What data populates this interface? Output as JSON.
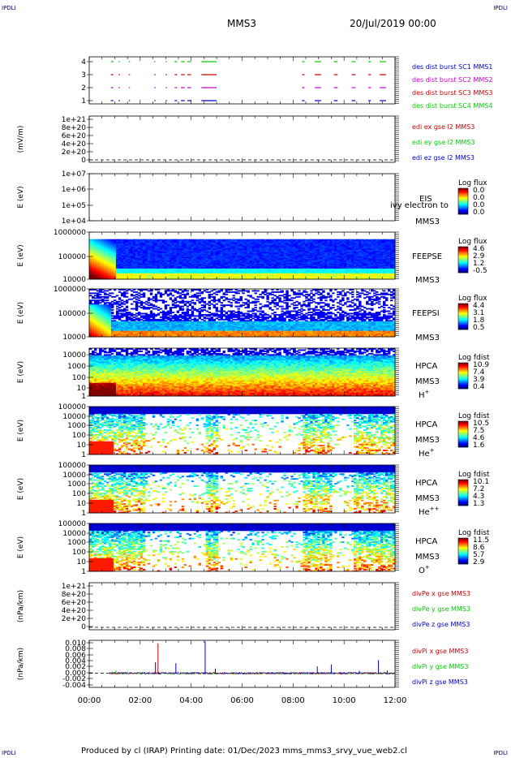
{
  "header": {
    "corner_label": "IPDLI",
    "title": "MMS3",
    "date": "20/Jul/2019 00:00"
  },
  "footer": {
    "text": "Produced by cl (IRAP)    Printing date: 01/Dec/2023    mms_mms3_srvy_vue_web2.cl"
  },
  "colors": {
    "red": "#cc0000",
    "green": "#00cc00",
    "blue": "#0000cc",
    "magenta": "#cc00cc"
  },
  "chart_data": [
    {
      "type": "line",
      "id": "burst",
      "ylabel": "",
      "yticks": [
        "4",
        "3",
        "2",
        "1"
      ],
      "ylim": [
        0.5,
        4.5
      ],
      "legend": [
        {
          "text": "des dist burst SC1 MMS1",
          "color": "#0000cc"
        },
        {
          "text": "des dist burst SC2 MMS2",
          "color": "#cc00cc"
        },
        {
          "text": "des dist burst SC3 MMS3",
          "color": "#cc0000"
        },
        {
          "text": "des dist burst SC4 MMS4",
          "color": "#00cc00"
        }
      ],
      "series": [
        {
          "level": 4,
          "color": "#00cc00",
          "intervals": [
            [
              0.85,
              0.95
            ],
            [
              1.15,
              1.2
            ],
            [
              1.55,
              1.6
            ],
            [
              2.55,
              2.6
            ],
            [
              3.0,
              3.05
            ],
            [
              3.35,
              3.45
            ],
            [
              3.6,
              3.75
            ],
            [
              3.85,
              4.0
            ],
            [
              4.4,
              5.0
            ],
            [
              8.35,
              8.45
            ],
            [
              8.85,
              9.1
            ],
            [
              9.6,
              9.75
            ],
            [
              10.3,
              10.45
            ],
            [
              10.95,
              11.05
            ],
            [
              11.4,
              11.65
            ]
          ]
        },
        {
          "level": 3,
          "color": "#cc0000",
          "intervals": [
            [
              0.85,
              0.95
            ],
            [
              1.15,
              1.2
            ],
            [
              1.55,
              1.6
            ],
            [
              2.55,
              2.6
            ],
            [
              3.0,
              3.05
            ],
            [
              3.35,
              3.45
            ],
            [
              3.6,
              3.75
            ],
            [
              3.85,
              4.0
            ],
            [
              4.4,
              5.0
            ],
            [
              8.35,
              8.45
            ],
            [
              8.85,
              9.1
            ],
            [
              9.6,
              9.75
            ],
            [
              10.3,
              10.45
            ],
            [
              10.95,
              11.05
            ],
            [
              11.4,
              11.65
            ]
          ]
        },
        {
          "level": 2,
          "color": "#cc00cc",
          "intervals": [
            [
              0.85,
              0.95
            ],
            [
              1.15,
              1.2
            ],
            [
              1.55,
              1.6
            ],
            [
              2.55,
              2.6
            ],
            [
              3.0,
              3.05
            ],
            [
              3.35,
              3.45
            ],
            [
              3.6,
              3.75
            ],
            [
              3.85,
              4.0
            ],
            [
              4.4,
              5.0
            ],
            [
              8.35,
              8.45
            ],
            [
              8.85,
              9.1
            ],
            [
              9.6,
              9.75
            ],
            [
              10.3,
              10.45
            ],
            [
              10.95,
              11.05
            ],
            [
              11.4,
              11.65
            ]
          ]
        },
        {
          "level": 1,
          "color": "#0000cc",
          "intervals": [
            [
              0.85,
              0.95
            ],
            [
              1.15,
              1.2
            ],
            [
              1.55,
              1.6
            ],
            [
              2.55,
              2.6
            ],
            [
              3.0,
              3.05
            ],
            [
              3.35,
              3.45
            ],
            [
              3.6,
              3.75
            ],
            [
              3.85,
              4.0
            ],
            [
              4.4,
              5.0
            ],
            [
              8.35,
              8.45
            ],
            [
              8.85,
              9.1
            ],
            [
              9.6,
              9.75
            ],
            [
              10.3,
              10.45
            ],
            [
              10.95,
              11.05
            ],
            [
              11.4,
              11.65
            ]
          ]
        }
      ]
    },
    {
      "type": "line",
      "id": "edi",
      "ylabel": "(mV/m)",
      "yticks": [
        "1e+21",
        "8e+20",
        "6e+20",
        "4e+20",
        "2e+20",
        "0"
      ],
      "ylim": [
        0,
        1e+21
      ],
      "zero_line": true,
      "legend": [
        {
          "text": "edi ex gse l2 MMS3",
          "color": "#cc0000"
        },
        {
          "text": "edi ey gse l2 MMS3",
          "color": "#00cc00"
        },
        {
          "text": "edi ez gse l2 MMS3",
          "color": "#0000cc"
        }
      ]
    },
    {
      "type": "heatmap",
      "id": "eis",
      "ylabel": "E (eV)",
      "yticks": [
        "1e+07",
        "1e+06",
        "1e+05",
        "1e+04"
      ],
      "ylim": [
        10000,
        10000000
      ],
      "log": true,
      "labels": [
        "EIS",
        "MMS3"
      ],
      "overlay_text": "ivy electron to",
      "colorbar": {
        "title": "Log flux",
        "ticks": [
          "0.0",
          "0.0",
          "0.0",
          "0.0"
        ]
      }
    },
    {
      "type": "heatmap",
      "id": "feepse",
      "ylabel": "E (eV)",
      "yticks": [
        "1000000",
        "100000",
        "10000"
      ],
      "ylim": [
        10000,
        1000000
      ],
      "log": true,
      "labels": [
        "FEEPSE",
        "MMS3"
      ],
      "colorbar": {
        "title": "Log flux",
        "ticks": [
          "4.6",
          "2.9",
          "1.2",
          "-0.5"
        ]
      }
    },
    {
      "type": "heatmap",
      "id": "feepsi",
      "ylabel": "E (eV)",
      "yticks": [
        "1000000",
        "100000",
        "10000"
      ],
      "ylim": [
        10000,
        1000000
      ],
      "log": true,
      "labels": [
        "FEEPSI",
        "MMS3"
      ],
      "colorbar": {
        "title": "Log flux",
        "ticks": [
          "4.4",
          "3.1",
          "1.8",
          "0.5"
        ]
      }
    },
    {
      "type": "heatmap",
      "id": "hpca-h",
      "ylabel": "E (eV)",
      "yticks": [
        "10000",
        "1000",
        "100",
        "10",
        "1"
      ],
      "ylim": [
        1,
        40000
      ],
      "log": true,
      "labels": [
        "HPCA",
        "MMS3"
      ],
      "species": "H",
      "charge": "+",
      "colorbar": {
        "title": "Log fdist",
        "ticks": [
          "10.9",
          "7.4",
          "3.9",
          "0.4"
        ]
      }
    },
    {
      "type": "heatmap",
      "id": "hpca-he",
      "ylabel": "E (eV)",
      "yticks": [
        "100000",
        "10000",
        "1000",
        "100",
        "10",
        "1"
      ],
      "ylim": [
        1,
        100000
      ],
      "log": true,
      "labels": [
        "HPCA",
        "MMS3"
      ],
      "species": "He",
      "charge": "+",
      "colorbar": {
        "title": "Log fdist",
        "ticks": [
          "10.5",
          "7.5",
          "4.6",
          "1.6"
        ]
      }
    },
    {
      "type": "heatmap",
      "id": "hpca-he2",
      "ylabel": "E (eV)",
      "yticks": [
        "100000",
        "10000",
        "1000",
        "100",
        "10",
        "1"
      ],
      "ylim": [
        1,
        100000
      ],
      "log": true,
      "labels": [
        "HPCA",
        "MMS3"
      ],
      "species": "He",
      "charge": "++",
      "colorbar": {
        "title": "Log fdist",
        "ticks": [
          "10.1",
          "7.2",
          "4.3",
          "1.3"
        ]
      }
    },
    {
      "type": "heatmap",
      "id": "hpca-o",
      "ylabel": "E (eV)",
      "yticks": [
        "100000",
        "10000",
        "1000",
        "100",
        "10",
        "1"
      ],
      "ylim": [
        1,
        100000
      ],
      "log": true,
      "labels": [
        "HPCA",
        "MMS3"
      ],
      "species": "O",
      "charge": "+",
      "colorbar": {
        "title": "Log fdist",
        "ticks": [
          "11.5",
          "8.6",
          "5.7",
          "2.9"
        ]
      }
    },
    {
      "type": "line",
      "id": "divpe",
      "ylabel": "(nPa/km)",
      "yticks": [
        "1e+21",
        "8e+20",
        "6e+20",
        "4e+20",
        "2e+20",
        "0"
      ],
      "ylim": [
        0,
        1e+21
      ],
      "zero_line": true,
      "legend": [
        {
          "text": "divPe x gse MMS3",
          "color": "#cc0000"
        },
        {
          "text": "divPe y gse MMS3",
          "color": "#00cc00"
        },
        {
          "text": "divPe z gse MMS3",
          "color": "#0000cc"
        }
      ]
    },
    {
      "type": "line",
      "id": "divpi",
      "ylabel": "(nPa/km)",
      "yticks": [
        "0.010",
        "0.008",
        "0.006",
        "0.004",
        "0.002",
        "0.000",
        "-0.002",
        "-0.004"
      ],
      "ylim": [
        -0.0045,
        0.0105
      ],
      "zero_line": true,
      "legend": [
        {
          "text": "divPi x gse MMS3",
          "color": "#cc0000"
        },
        {
          "text": "divPi y gse MMS3",
          "color": "#00cc00"
        },
        {
          "text": "divPi z gse MMS3",
          "color": "#0000cc"
        }
      ],
      "spikes": [
        {
          "x": 1.05,
          "y": 0.0008,
          "color": "#00cc00"
        },
        {
          "x": 2.6,
          "y": 0.0035,
          "color": "#0000cc"
        },
        {
          "x": 2.7,
          "y": 0.0095,
          "color": "#cc0000"
        },
        {
          "x": 3.4,
          "y": 0.0032,
          "color": "#0000cc"
        },
        {
          "x": 4.55,
          "y": 0.0102,
          "color": "#0000cc"
        },
        {
          "x": 4.95,
          "y": 0.0015,
          "color": "#0000cc"
        },
        {
          "x": 8.95,
          "y": 0.0022,
          "color": "#0000cc"
        },
        {
          "x": 9.5,
          "y": 0.0028,
          "color": "#0000cc"
        },
        {
          "x": 10.6,
          "y": 0.0008,
          "color": "#0000cc"
        },
        {
          "x": 11.35,
          "y": 0.0042,
          "color": "#0000cc"
        },
        {
          "x": 11.7,
          "y": 0.0009,
          "color": "#0000cc"
        }
      ]
    }
  ],
  "xaxis": {
    "ticks": [
      "00:00",
      "02:00",
      "04:00",
      "06:00",
      "08:00",
      "10:00",
      "12:00"
    ],
    "range_hours": [
      0,
      12
    ]
  }
}
